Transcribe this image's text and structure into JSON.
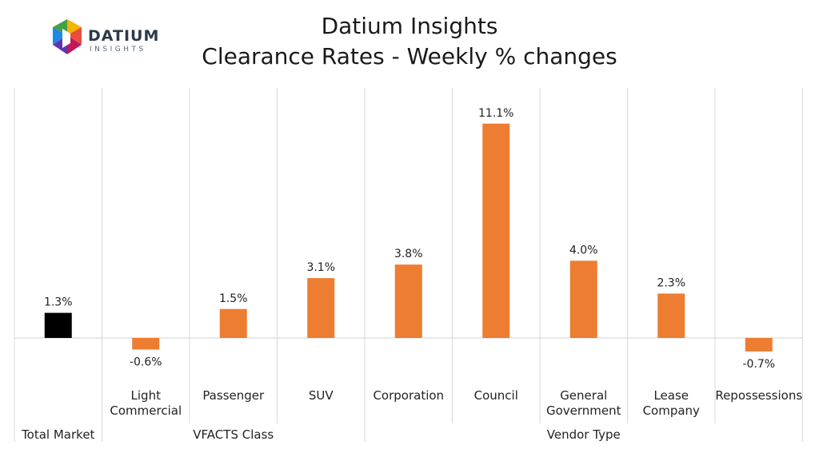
{
  "header": {
    "logo_word": "DATIUM",
    "logo_sub": "INSIGHTS",
    "title": "Datium Insights",
    "subtitle": "Clearance Rates - Weekly % changes"
  },
  "chart_data": {
    "type": "bar",
    "title": "Datium Insights",
    "subtitle": "Clearance Rates - Weekly % changes",
    "unit": "%",
    "categories": [
      {
        "label": [
          "Total Market"
        ],
        "group": ""
      },
      {
        "label": [
          "Light",
          "Commercial"
        ],
        "group": "VFACTS Class"
      },
      {
        "label": [
          "Passenger"
        ],
        "group": "VFACTS Class"
      },
      {
        "label": [
          "SUV"
        ],
        "group": "VFACTS Class"
      },
      {
        "label": [
          "Corporation"
        ],
        "group": "Vendor Type"
      },
      {
        "label": [
          "Council"
        ],
        "group": "Vendor Type"
      },
      {
        "label": [
          "General",
          "Government"
        ],
        "group": "Vendor Type"
      },
      {
        "label": [
          "Lease",
          "Company"
        ],
        "group": "Vendor Type"
      },
      {
        "label": [
          "Repossessions"
        ],
        "group": "Vendor Type"
      }
    ],
    "group_labels": [
      "Total Market",
      "VFACTS Class",
      "Vendor Type"
    ],
    "values": [
      1.3,
      -0.6,
      1.5,
      3.1,
      3.8,
      11.1,
      4.0,
      2.3,
      -0.7
    ],
    "data_labels": [
      "1.3%",
      "-0.6%",
      "1.5%",
      "3.1%",
      "3.8%",
      "11.1%",
      "4.0%",
      "2.3%",
      "-0.7%"
    ],
    "colors": [
      "#000000",
      "#ED7D31",
      "#ED7D31",
      "#ED7D31",
      "#ED7D31",
      "#ED7D31",
      "#ED7D31",
      "#ED7D31",
      "#ED7D31"
    ],
    "ylim": [
      -1.1,
      12
    ],
    "grid": false,
    "legend": "none"
  }
}
